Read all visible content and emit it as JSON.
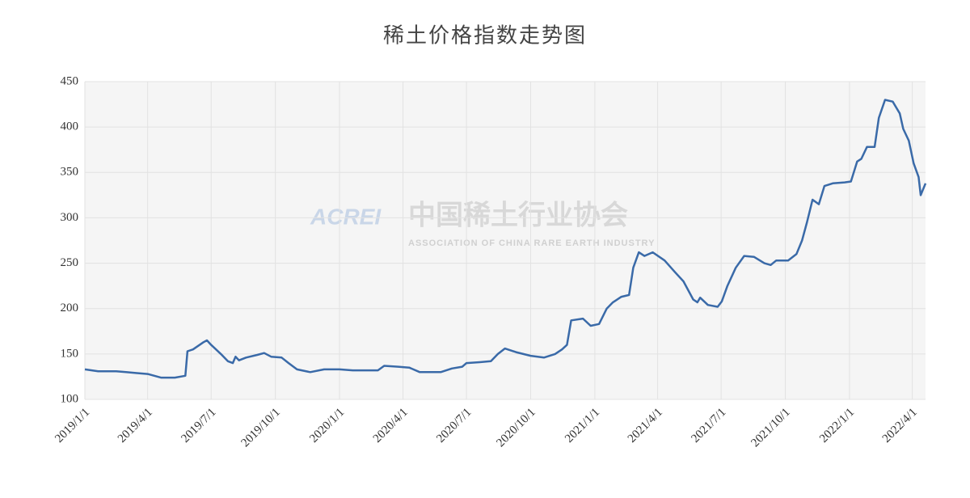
{
  "chart_data": {
    "type": "line",
    "title": "稀土价格指数走势图",
    "watermark": {
      "logo": "ACREI",
      "name": "中国稀土行业协会",
      "english": "ASSOCIATION OF CHINA RARE EARTH INDUSTRY"
    },
    "x": [
      "2019/1/1",
      "2019/1/20",
      "2019/2/15",
      "2019/3/1",
      "2019/3/15",
      "2019/4/1",
      "2019/4/20",
      "2019/5/10",
      "2019/5/25",
      "2019/5/28",
      "2019/6/5",
      "2019/6/20",
      "2019/6/25",
      "2019/7/1",
      "2019/7/15",
      "2019/7/25",
      "2019/8/1",
      "2019/8/5",
      "2019/8/10",
      "2019/8/20",
      "2019/9/5",
      "2019/9/15",
      "2019/9/25",
      "2019/10/10",
      "2019/10/20",
      "2019/11/1",
      "2019/11/20",
      "2019/12/10",
      "2020/1/1",
      "2020/1/20",
      "2020/2/25",
      "2020/3/5",
      "2020/3/25",
      "2020/4/10",
      "2020/4/25",
      "2020/5/25",
      "2020/6/10",
      "2020/6/25",
      "2020/7/1",
      "2020/7/20",
      "2020/8/5",
      "2020/8/15",
      "2020/8/25",
      "2020/9/10",
      "2020/10/1",
      "2020/10/20",
      "2020/11/5",
      "2020/11/15",
      "2020/11/22",
      "2020/11/28",
      "2020/12/15",
      "2020/12/26",
      "2021/1/7",
      "2021/1/18",
      "2021/1/27",
      "2021/2/8",
      "2021/2/19",
      "2021/2/25",
      "2021/3/5",
      "2021/3/13",
      "2021/3/25",
      "2021/4/11",
      "2021/4/26",
      "2021/5/8",
      "2021/5/22",
      "2021/5/28",
      "2021/6/1",
      "2021/6/12",
      "2021/6/26",
      "2021/7/2",
      "2021/7/10",
      "2021/7/22",
      "2021/8/3",
      "2021/8/17",
      "2021/9/1",
      "2021/9/10",
      "2021/9/18",
      "2021/10/5",
      "2021/10/17",
      "2021/10/25",
      "2021/11/1",
      "2021/11/9",
      "2021/11/18",
      "2021/11/26",
      "2021/12/8",
      "2021/12/25",
      "2022/1/3",
      "2022/1/12",
      "2022/1/18",
      "2022/1/26",
      "2022/2/6",
      "2022/2/12",
      "2022/2/21",
      "2022/3/4",
      "2022/3/14",
      "2022/3/19",
      "2022/3/27",
      "2022/4/3",
      "2022/4/10",
      "2022/4/13",
      "2022/4/20"
    ],
    "series": [
      {
        "name": "稀土价格指数",
        "color": "#3a6aa8",
        "values": [
          133,
          131,
          131,
          130,
          129,
          128,
          124,
          124,
          126,
          153,
          155,
          163,
          165,
          160,
          150,
          142,
          140,
          147,
          143,
          146,
          149,
          151,
          147,
          146,
          140,
          133,
          130,
          133,
          133,
          132,
          132,
          137,
          136,
          135,
          130,
          130,
          134,
          136,
          140,
          141,
          142,
          150,
          156,
          152,
          148,
          146,
          150,
          155,
          160,
          187,
          189,
          181,
          183,
          200,
          207,
          213,
          215,
          245,
          262,
          258,
          262,
          253,
          240,
          230,
          210,
          207,
          212,
          204,
          202,
          208,
          225,
          245,
          258,
          257,
          250,
          248,
          253,
          253,
          260,
          275,
          295,
          320,
          315,
          335,
          338,
          339,
          340,
          362,
          365,
          378,
          378,
          410,
          430,
          428,
          415,
          398,
          385,
          360,
          345,
          325,
          338
        ]
      }
    ],
    "xlim": [
      "2019/1/1",
      "2022/4/20"
    ],
    "xticks": [
      "2019/1/1",
      "2019/4/1",
      "2019/7/1",
      "2019/10/1",
      "2020/1/1",
      "2020/4/1",
      "2020/7/1",
      "2020/10/1",
      "2021/1/1",
      "2021/4/1",
      "2021/7/1",
      "2021/10/1",
      "2022/1/1",
      "2022/4/1"
    ],
    "ylim": [
      100,
      450
    ],
    "yticks": [
      100,
      150,
      200,
      250,
      300,
      350,
      400,
      450
    ],
    "grid": true
  }
}
